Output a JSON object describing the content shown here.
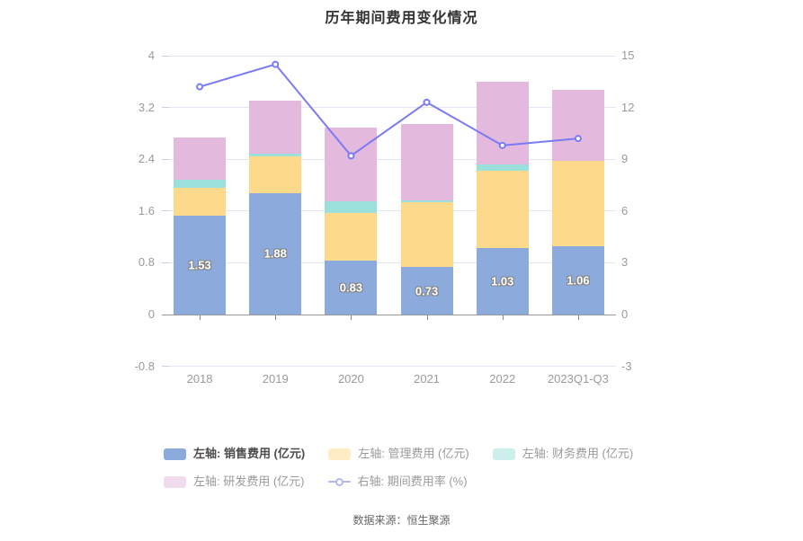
{
  "title": "历年期间费用变化情况",
  "footer": "数据来源：恒生聚源",
  "colors": {
    "sales": "#8caadb",
    "management": "#fdd98c",
    "finance": "#9be0da",
    "rnd": "#e4b9de",
    "rate_line": "#7a7af3",
    "grid": "#e2e6f3",
    "grid_nub": "#c9cfdf",
    "axis_line": "#999999",
    "axis_text": "#9a9a9a",
    "tick_mark": "#888888",
    "title_text": "#333333",
    "bar_label_text": "#ffffff",
    "legend_active_text": "#4c4c4c",
    "legend_dim_text": "#9a9a9a",
    "footer_text": "#666666"
  },
  "chart_data": {
    "type": "bar",
    "subtype": "stacked-bars-with-dual-axis-line",
    "title": "历年期间费用变化情况",
    "categories": [
      "2018",
      "2019",
      "2020",
      "2021",
      "2022",
      "2023Q1-Q3"
    ],
    "series": [
      {
        "key": "sales",
        "name": "左轴: 销售费用 (亿元)",
        "values": [
          1.53,
          1.88,
          0.83,
          0.73,
          1.03,
          1.06
        ]
      },
      {
        "key": "management",
        "name": "左轴: 管理费用 (亿元)",
        "values": [
          0.43,
          0.56,
          0.74,
          1.01,
          1.19,
          1.31
        ]
      },
      {
        "key": "finance",
        "name": "左轴: 财务费用 (亿元)",
        "values": [
          0.12,
          0.05,
          0.18,
          0.03,
          0.1,
          0.0
        ]
      },
      {
        "key": "rnd",
        "name": "左轴: 研发费用 (亿元)",
        "values": [
          0.65,
          0.82,
          1.14,
          1.18,
          1.28,
          1.1
        ]
      }
    ],
    "line_series": {
      "key": "rate",
      "name": "右轴: 期间费用率 (%)",
      "values": [
        13.2,
        14.5,
        9.2,
        12.3,
        9.8,
        10.2
      ]
    },
    "bar_labels": [
      "1.53",
      "1.88",
      "0.83",
      "0.73",
      "1.03",
      "1.06"
    ],
    "left_axis": {
      "tick_values": [
        4,
        3.2,
        2.4,
        1.6,
        0.8,
        0,
        -0.8
      ],
      "tick_labels": [
        "4",
        "3.2",
        "2.4",
        "1.6",
        "0.8",
        "0",
        "-0.8"
      ],
      "min": -0.8,
      "max": 4
    },
    "right_axis": {
      "tick_values": [
        15,
        12,
        9,
        6,
        3,
        0,
        -3
      ],
      "tick_labels": [
        "15",
        "12",
        "9",
        "6",
        "3",
        "0",
        "-3"
      ],
      "min": -3,
      "max": 15
    },
    "grid": true,
    "legend_position": "bottom"
  },
  "legend": {
    "rows": [
      [
        {
          "label": "左轴: 销售费用 (亿元)",
          "series": "sales",
          "marker": "rect",
          "state": "active"
        },
        {
          "label": "左轴: 管理费用 (亿元)",
          "series": "management",
          "marker": "rect",
          "state": "dim"
        },
        {
          "label": "左轴: 财务费用 (亿元)",
          "series": "finance",
          "marker": "rect",
          "state": "dim"
        }
      ],
      [
        {
          "label": "左轴: 研发费用 (亿元)",
          "series": "rnd",
          "marker": "rect",
          "state": "dim"
        },
        {
          "label": "右轴: 期间费用率 (%)",
          "series": "rate",
          "marker": "line",
          "state": "dim"
        }
      ]
    ]
  }
}
